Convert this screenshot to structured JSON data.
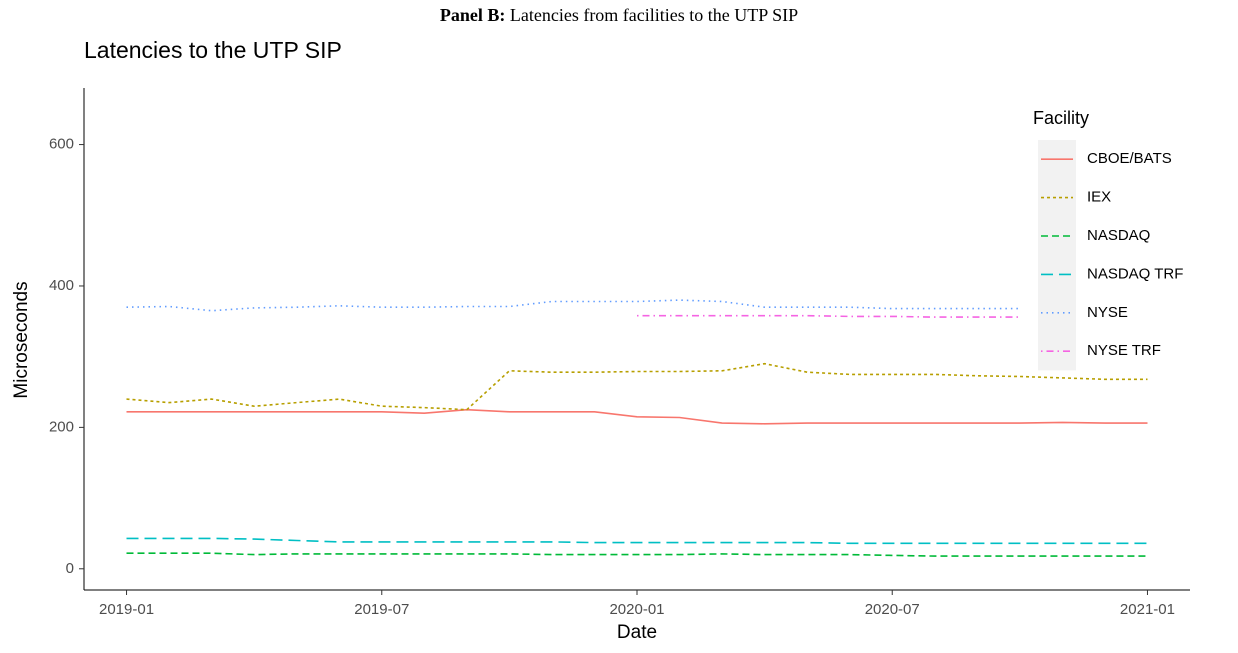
{
  "panel_label": "Panel B:",
  "panel_title": "Latencies from facilities to the UTP SIP",
  "chart_data": {
    "type": "line",
    "title": "Latencies to the UTP SIP",
    "xlabel": "Date",
    "ylabel": "Microseconds",
    "x": [
      "2019-01",
      "2019-02",
      "2019-03",
      "2019-04",
      "2019-05",
      "2019-06",
      "2019-07",
      "2019-08",
      "2019-09",
      "2019-10",
      "2019-11",
      "2019-12",
      "2020-01",
      "2020-02",
      "2020-03",
      "2020-04",
      "2020-05",
      "2020-06",
      "2020-07",
      "2020-08",
      "2020-09",
      "2020-10",
      "2020-11",
      "2020-12",
      "2021-01"
    ],
    "series": [
      {
        "name": "CBOE/BATS",
        "color": "#F8766D",
        "values": [
          222,
          222,
          222,
          222,
          222,
          222,
          222,
          220,
          225,
          222,
          222,
          222,
          215,
          214,
          206,
          205,
          206,
          206,
          206,
          206,
          206,
          206,
          207,
          206,
          206
        ]
      },
      {
        "name": "IEX",
        "color": "#B79F00",
        "values": [
          240,
          235,
          240,
          230,
          235,
          240,
          230,
          228,
          225,
          280,
          278,
          278,
          279,
          279,
          280,
          290,
          278,
          275,
          275,
          275,
          273,
          272,
          270,
          268,
          268
        ]
      },
      {
        "name": "NASDAQ",
        "color": "#00BA38",
        "values": [
          22,
          22,
          22,
          20,
          21,
          21,
          21,
          21,
          21,
          21,
          20,
          20,
          20,
          20,
          21,
          20,
          20,
          20,
          19,
          18,
          18,
          18,
          18,
          18,
          18
        ]
      },
      {
        "name": "NASDAQ TRF",
        "color": "#00BFC4",
        "values": [
          43,
          43,
          43,
          42,
          40,
          38,
          38,
          38,
          38,
          38,
          38,
          37,
          37,
          37,
          37,
          37,
          37,
          36,
          36,
          36,
          36,
          36,
          36,
          36,
          36
        ]
      },
      {
        "name": "NYSE",
        "color": "#619CFF",
        "values": [
          370,
          371,
          365,
          369,
          370,
          372,
          370,
          370,
          371,
          371,
          378,
          378,
          378,
          380,
          378,
          370,
          370,
          370,
          368,
          368,
          368,
          368,
          null,
          null,
          null
        ]
      },
      {
        "name": "NYSE TRF",
        "color": "#F564E3",
        "values": [
          null,
          null,
          null,
          null,
          null,
          null,
          null,
          null,
          null,
          null,
          null,
          null,
          358,
          358,
          358,
          358,
          358,
          357,
          357,
          356,
          356,
          356,
          null,
          null,
          null
        ]
      }
    ],
    "xlim": [
      "2018-12",
      "2021-02"
    ],
    "xticks": [
      "2019-01",
      "2019-07",
      "2020-01",
      "2020-07",
      "2021-01"
    ],
    "ylim": [
      -30,
      680
    ],
    "yticks": [
      0,
      200,
      400,
      600
    ],
    "legend_title": "Facility",
    "legend_position": "right"
  }
}
